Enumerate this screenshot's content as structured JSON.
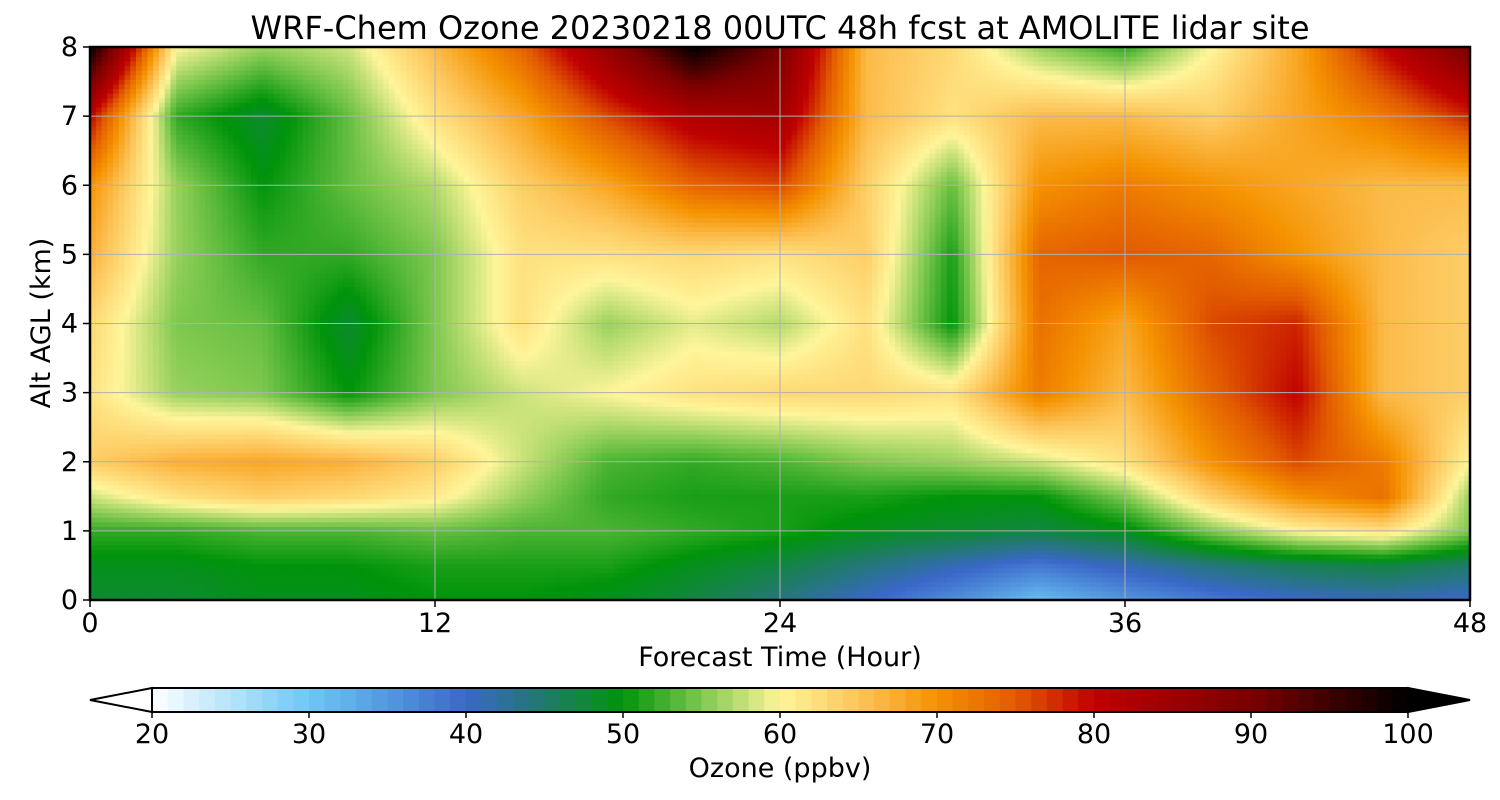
{
  "chart_data": {
    "type": "heatmap",
    "title": "WRF-Chem Ozone  20230218 00UTC 48h fcst at AMOLITE lidar site",
    "xlabel": "Forecast Time (Hour)",
    "ylabel": "Alt AGL (km)",
    "xlim": [
      0,
      48
    ],
    "ylim": [
      0,
      8
    ],
    "x_ticks": [
      0,
      12,
      24,
      36,
      48
    ],
    "y_ticks": [
      0,
      1,
      2,
      3,
      4,
      5,
      6,
      7,
      8
    ],
    "grid": true,
    "x": [
      0,
      3,
      6,
      9,
      12,
      15,
      18,
      21,
      24,
      27,
      30,
      33,
      36,
      39,
      42,
      45,
      48
    ],
    "y": [
      0,
      0.5,
      1,
      1.5,
      2,
      3,
      4,
      5,
      6,
      7,
      8
    ],
    "z_ozone_ppbv": [
      [
        48,
        48,
        49,
        49,
        50,
        50,
        49,
        47,
        44,
        40,
        36,
        31,
        35,
        38,
        40,
        41,
        40
      ],
      [
        49,
        49,
        50,
        50,
        51,
        51,
        51,
        49,
        47,
        44,
        41,
        38,
        41,
        44,
        46,
        47,
        45
      ],
      [
        52,
        52,
        53,
        53,
        54,
        53,
        53,
        52,
        51,
        49,
        48,
        47,
        49,
        55,
        60,
        62,
        55
      ],
      [
        58,
        62,
        64,
        63,
        61,
        56,
        52,
        51,
        51,
        51,
        50,
        50,
        55,
        64,
        70,
        73,
        56
      ],
      [
        64,
        67,
        68,
        67,
        64,
        58,
        53,
        52,
        53,
        55,
        56,
        58,
        62,
        70,
        76,
        72,
        60
      ],
      [
        62,
        56,
        55,
        50,
        55,
        58,
        60,
        62,
        63,
        63,
        62,
        72,
        66,
        74,
        80,
        66,
        64
      ],
      [
        63,
        55,
        54,
        48,
        55,
        62,
        56,
        59,
        57,
        62,
        50,
        73,
        68,
        76,
        78,
        66,
        64
      ],
      [
        67,
        56,
        52,
        52,
        55,
        62,
        62,
        63,
        62,
        64,
        51,
        74,
        75,
        74,
        70,
        66,
        64
      ],
      [
        70,
        56,
        50,
        54,
        57,
        64,
        68,
        74,
        76,
        64,
        54,
        70,
        72,
        70,
        68,
        66,
        66
      ],
      [
        80,
        52,
        48,
        54,
        62,
        68,
        76,
        82,
        84,
        66,
        62,
        66,
        66,
        64,
        68,
        72,
        78
      ],
      [
        100,
        60,
        56,
        58,
        66,
        74,
        86,
        100,
        90,
        66,
        63,
        56,
        52,
        60,
        68,
        80,
        90
      ]
    ],
    "colorbar": {
      "label": "Ozone  (ppbv)",
      "min": 20,
      "max": 100,
      "ticks": [
        20,
        30,
        40,
        50,
        60,
        70,
        80,
        90,
        100
      ],
      "extend": "both",
      "colors": [
        {
          "v": 20,
          "c": "#ffffff"
        },
        {
          "v": 30,
          "c": "#6cc8f5"
        },
        {
          "v": 40,
          "c": "#3a67c8"
        },
        {
          "v": 45,
          "c": "#207a6a"
        },
        {
          "v": 50,
          "c": "#00940a"
        },
        {
          "v": 55,
          "c": "#7ec84e"
        },
        {
          "v": 60,
          "c": "#fff59a"
        },
        {
          "v": 65,
          "c": "#fdc55a"
        },
        {
          "v": 70,
          "c": "#f59200"
        },
        {
          "v": 75,
          "c": "#e25a00"
        },
        {
          "v": 80,
          "c": "#bf0000"
        },
        {
          "v": 90,
          "c": "#7a0000"
        },
        {
          "v": 100,
          "c": "#000000"
        }
      ]
    }
  }
}
